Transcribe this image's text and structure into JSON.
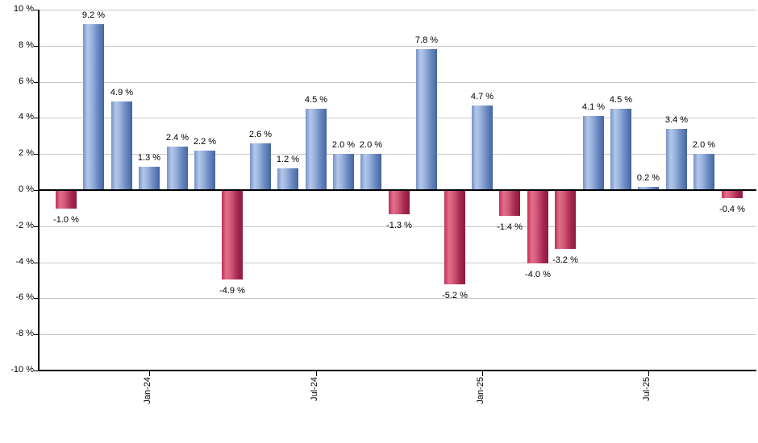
{
  "page": {
    "background_color": "#ffffff",
    "grid_color": "#c9c9c9",
    "axis_color": "#000000",
    "text_color": "#000000"
  },
  "chart_data": {
    "type": "bar",
    "title": "",
    "xlabel": "",
    "ylabel": "",
    "unit": "%",
    "ylim": [
      -10,
      10
    ],
    "y_tick_step": 2,
    "grid": true,
    "legend": "none",
    "positive_color": "#88a3d4",
    "negative_color": "#c23b60",
    "y_tick_values": [
      10,
      8,
      6,
      4,
      2,
      0,
      -2,
      -4,
      -6,
      -8,
      -10
    ],
    "y_tick_labels": [
      "10 %",
      "8 %",
      "6 %",
      "4 %",
      "2 %",
      "0 %",
      "-2 %",
      "-4 %",
      "-6 %",
      "-8 %",
      "-10 %"
    ],
    "x_ticks": [
      {
        "label": "Jan-24",
        "bar_index": 3
      },
      {
        "label": "Jul-24",
        "bar_index": 9
      },
      {
        "label": "Jan-25",
        "bar_index": 15
      },
      {
        "label": "Jul-25",
        "bar_index": 21
      }
    ],
    "values": [
      -1.0,
      9.2,
      4.9,
      1.3,
      2.4,
      2.2,
      -4.9,
      2.6,
      1.2,
      4.5,
      2.0,
      2.0,
      -1.3,
      7.8,
      -5.2,
      4.7,
      -1.4,
      -4.0,
      -3.2,
      4.1,
      4.5,
      0.2,
      3.4,
      2.0,
      -0.4
    ],
    "value_labels": [
      "-1.0 %",
      "9.2 %",
      "4.9 %",
      "1.3 %",
      "2.4 %",
      "2.2 %",
      "-4.9 %",
      "2.6 %",
      "1.2 %",
      "4.5 %",
      "2.0 %",
      "2.0 %",
      "-1.3 %",
      "7.8 %",
      "-5.2 %",
      "4.7 %",
      "-1.4 %",
      "-4.0 %",
      "-3.2 %",
      "4.1 %",
      "4.5 %",
      "0.2 %",
      "3.4 %",
      "2.0 %",
      "-0.4 %"
    ]
  }
}
